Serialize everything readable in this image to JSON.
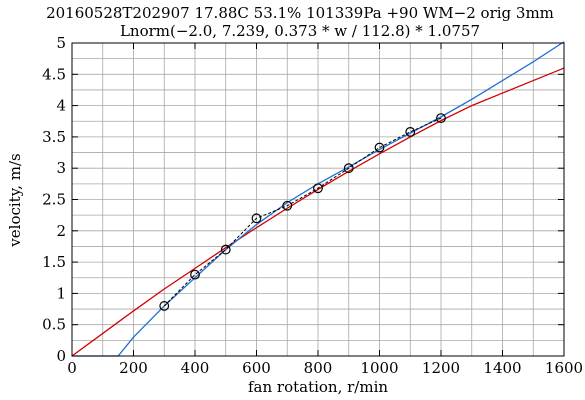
{
  "chart_data": {
    "type": "line",
    "title": "20160528T202907 17.88C 53.1% 101339Pa +90 WM−2 orig 3mm",
    "subtitle": "Lnorm(−2.0, 7.239, 0.373 * w / 112.8) * 1.0757",
    "xlabel": "fan rotation, r/min",
    "ylabel": "velocity, m/s",
    "xlim": [
      0,
      1600
    ],
    "ylim": [
      0,
      5
    ],
    "x_ticks": [
      0,
      200,
      400,
      600,
      800,
      1000,
      1200,
      1400,
      1600
    ],
    "y_ticks": [
      "0",
      "0.5",
      "1",
      "1.5",
      "2",
      "2.5",
      "3",
      "3.5",
      "4",
      "4.5",
      "5"
    ],
    "grid": true,
    "series": [
      {
        "style": "dashed-black-with-circle-markers",
        "color": "#000000",
        "x": [
          300,
          400,
          500,
          600,
          700,
          800,
          900,
          1000,
          1100,
          1200
        ],
        "y": [
          0.8,
          1.3,
          1.7,
          2.2,
          2.4,
          2.68,
          3.0,
          3.33,
          3.58,
          3.8
        ]
      },
      {
        "style": "solid",
        "color": "#d40000",
        "x": [
          0,
          100,
          200,
          300,
          400,
          500,
          600,
          700,
          800,
          900,
          1000,
          1100,
          1200,
          1300,
          1400,
          1500,
          1600
        ],
        "y": [
          0.0,
          0.36,
          0.72,
          1.07,
          1.4,
          1.73,
          2.05,
          2.36,
          2.66,
          2.95,
          3.23,
          3.5,
          3.76,
          4.0,
          4.2,
          4.4,
          4.6
        ]
      },
      {
        "style": "solid",
        "color": "#1f6fd6",
        "x": [
          0,
          150,
          200,
          300,
          400,
          500,
          600,
          700,
          800,
          900,
          1000,
          1100,
          1200,
          1300,
          1400,
          1500,
          1600
        ],
        "y": [
          0.0,
          0.0,
          0.3,
          0.8,
          1.25,
          1.7,
          2.1,
          2.45,
          2.75,
          3.02,
          3.3,
          3.56,
          3.82,
          4.1,
          4.4,
          4.7,
          5.02
        ]
      }
    ]
  }
}
